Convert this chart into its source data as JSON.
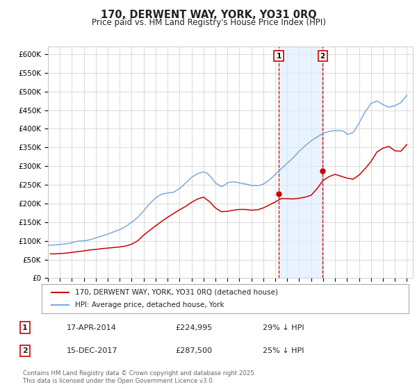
{
  "title": "170, DERWENT WAY, YORK, YO31 0RQ",
  "subtitle": "Price paid vs. HM Land Registry's House Price Index (HPI)",
  "title_fontsize": 10.5,
  "subtitle_fontsize": 8.5,
  "background_color": "#ffffff",
  "plot_bg_color": "#ffffff",
  "grid_color": "#cccccc",
  "legend1_label": "170, DERWENT WAY, YORK, YO31 0RQ (detached house)",
  "legend2_label": "HPI: Average price, detached house, York",
  "red_line_color": "#cc0000",
  "blue_line_color": "#7aaadd",
  "marker_color": "#cc0000",
  "annotation_bg": "#ddeeff",
  "dashed_line_color": "#cc0000",
  "ylim": [
    0,
    620000
  ],
  "yticks": [
    0,
    50000,
    100000,
    150000,
    200000,
    250000,
    300000,
    350000,
    400000,
    450000,
    500000,
    550000,
    600000
  ],
  "xmin": 1995.0,
  "xmax": 2025.5,
  "sale1_x": 2014.29,
  "sale1_y": 224995,
  "sale1_label": "1",
  "sale1_date": "17-APR-2014",
  "sale1_price": "£224,995",
  "sale1_hpi": "29% ↓ HPI",
  "sale2_x": 2017.96,
  "sale2_y": 287500,
  "sale2_label": "2",
  "sale2_date": "15-DEC-2017",
  "sale2_price": "£287,500",
  "sale2_hpi": "25% ↓ HPI",
  "footnote_line1": "Contains HM Land Registry data © Crown copyright and database right 2025.",
  "footnote_line2": "This data is licensed under the Open Government Licence v3.0.",
  "hpi_line_x": [
    1995.0,
    1995.25,
    1995.5,
    1995.75,
    1996.0,
    1996.25,
    1996.5,
    1996.75,
    1997.0,
    1997.25,
    1997.5,
    1997.75,
    1998.0,
    1998.25,
    1998.5,
    1998.75,
    1999.0,
    1999.25,
    1999.5,
    1999.75,
    2000.0,
    2000.25,
    2000.5,
    2000.75,
    2001.0,
    2001.25,
    2001.5,
    2001.75,
    2002.0,
    2002.25,
    2002.5,
    2002.75,
    2003.0,
    2003.25,
    2003.5,
    2003.75,
    2004.0,
    2004.25,
    2004.5,
    2004.75,
    2005.0,
    2005.25,
    2005.5,
    2005.75,
    2006.0,
    2006.25,
    2006.5,
    2006.75,
    2007.0,
    2007.25,
    2007.5,
    2007.75,
    2008.0,
    2008.25,
    2008.5,
    2008.75,
    2009.0,
    2009.25,
    2009.5,
    2009.75,
    2010.0,
    2010.25,
    2010.5,
    2010.75,
    2011.0,
    2011.25,
    2011.5,
    2011.75,
    2012.0,
    2012.25,
    2012.5,
    2012.75,
    2013.0,
    2013.25,
    2013.5,
    2013.75,
    2014.0,
    2014.25,
    2014.5,
    2014.75,
    2015.0,
    2015.25,
    2015.5,
    2015.75,
    2016.0,
    2016.25,
    2016.5,
    2016.75,
    2017.0,
    2017.25,
    2017.5,
    2017.75,
    2018.0,
    2018.25,
    2018.5,
    2018.75,
    2019.0,
    2019.25,
    2019.5,
    2019.75,
    2020.0,
    2020.25,
    2020.5,
    2020.75,
    2021.0,
    2021.25,
    2021.5,
    2021.75,
    2022.0,
    2022.25,
    2022.5,
    2022.75,
    2023.0,
    2023.25,
    2023.5,
    2023.75,
    2024.0,
    2024.25,
    2024.5,
    2024.75,
    2025.0
  ],
  "hpi_line_y": [
    88000,
    88000,
    89000,
    89500,
    90000,
    91000,
    92000,
    93500,
    95000,
    97000,
    99000,
    99500,
    100000,
    101000,
    103000,
    105000,
    108000,
    110000,
    113000,
    115500,
    118000,
    121000,
    124000,
    127000,
    130000,
    134000,
    138000,
    144000,
    150000,
    156000,
    163000,
    171000,
    180000,
    190000,
    200000,
    207000,
    215000,
    220000,
    225000,
    226500,
    228000,
    229000,
    230000,
    235000,
    240000,
    247000,
    255000,
    262000,
    270000,
    275000,
    280000,
    282000,
    285000,
    282000,
    275000,
    266000,
    255000,
    250000,
    245000,
    249000,
    255000,
    257000,
    258000,
    257000,
    255000,
    254000,
    252000,
    251000,
    248000,
    248000,
    248000,
    249000,
    252000,
    257000,
    263000,
    270000,
    278000,
    285000,
    293000,
    300000,
    308000,
    315000,
    323000,
    331000,
    340000,
    347000,
    355000,
    361000,
    368000,
    373000,
    378000,
    383000,
    388000,
    390000,
    393000,
    394000,
    395000,
    395000,
    395000,
    393000,
    385000,
    387000,
    390000,
    402000,
    415000,
    430000,
    445000,
    456000,
    468000,
    471000,
    475000,
    470000,
    465000,
    461000,
    458000,
    460000,
    462000,
    466000,
    470000,
    480000,
    490000
  ],
  "price_line_x": [
    1995.2,
    1995.5,
    1995.8,
    1996.1,
    1996.5,
    1997.0,
    1997.5,
    1998.0,
    1998.5,
    1999.0,
    1999.5,
    2000.0,
    2000.5,
    2001.0,
    2001.5,
    2002.0,
    2002.5,
    2003.0,
    2003.5,
    2004.0,
    2004.5,
    2005.0,
    2005.5,
    2006.0,
    2006.5,
    2007.0,
    2007.5,
    2008.0,
    2008.5,
    2009.0,
    2009.5,
    2010.0,
    2010.5,
    2011.0,
    2011.5,
    2012.0,
    2012.5,
    2013.0,
    2013.5,
    2014.0,
    2014.5,
    2015.0,
    2015.5,
    2016.0,
    2016.5,
    2017.0,
    2017.5,
    2018.0,
    2018.5,
    2019.0,
    2019.5,
    2020.0,
    2020.5,
    2021.0,
    2021.5,
    2022.0,
    2022.5,
    2023.0,
    2023.5,
    2024.0,
    2024.5,
    2025.0
  ],
  "price_line_y": [
    65000,
    65000,
    65500,
    66000,
    67000,
    69000,
    71000,
    73000,
    75500,
    77000,
    79000,
    80500,
    82000,
    83500,
    86000,
    91000,
    100000,
    115000,
    128000,
    140000,
    152000,
    163000,
    173000,
    183000,
    192000,
    203000,
    212000,
    217000,
    205000,
    188000,
    178000,
    179000,
    182000,
    184000,
    184000,
    182000,
    183000,
    188000,
    196000,
    204000,
    213000,
    213000,
    212000,
    214000,
    217000,
    222000,
    240000,
    262000,
    272000,
    278000,
    273000,
    268000,
    265000,
    276000,
    293000,
    312000,
    338000,
    348000,
    353000,
    341000,
    340000,
    358000
  ]
}
